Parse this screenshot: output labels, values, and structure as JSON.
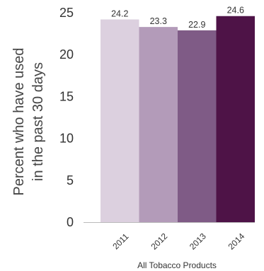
{
  "chart_data": {
    "type": "bar",
    "title": "",
    "categories": [
      "2011",
      "2012",
      "2013",
      "2014"
    ],
    "values": [
      24.2,
      23.3,
      22.9,
      24.6
    ],
    "data_labels": [
      "24.2",
      "23.3",
      "22.9",
      "24.6"
    ],
    "ylabel_lines": [
      "Percent who have used",
      "in the past 30 days"
    ],
    "xlabel": "All Tobacco Products",
    "ylim": [
      0,
      25
    ],
    "yticks": [
      "0",
      "5",
      "10",
      "15",
      "20",
      "25"
    ],
    "grid": false,
    "bar_colors": [
      "#dcd0df",
      "#b39bb9",
      "#7f5b86",
      "#4e1347"
    ]
  }
}
